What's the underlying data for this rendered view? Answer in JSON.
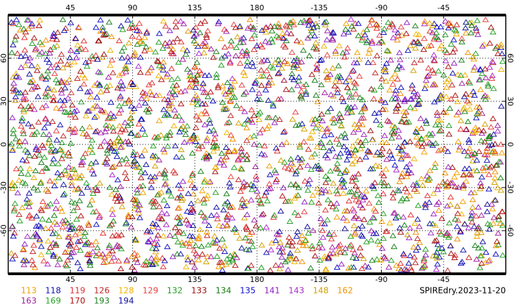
{
  "map": {
    "title": "SPIREdry.2023-11-20",
    "xlim": [
      0,
      360
    ],
    "ylim": [
      -90,
      90
    ],
    "xticks": [
      45,
      90,
      135,
      180,
      {
        "value": 225,
        "label": "-135"
      },
      {
        "value": 270,
        "label": "-90"
      },
      {
        "value": 315,
        "label": "-45"
      }
    ],
    "yticks": [
      -60,
      -30,
      0,
      30,
      60
    ],
    "grid": true,
    "legend": [
      {
        "name": "113",
        "color": "#f0a000"
      },
      {
        "name": "118",
        "color": "#1414b4"
      },
      {
        "name": "119",
        "color": "#e03030"
      },
      {
        "name": "126",
        "color": "#c02828"
      },
      {
        "name": "128",
        "color": "#f0b400"
      },
      {
        "name": "129",
        "color": "#e84040"
      },
      {
        "name": "132",
        "color": "#20a020"
      },
      {
        "name": "133",
        "color": "#a01010"
      },
      {
        "name": "134",
        "color": "#108010"
      },
      {
        "name": "135",
        "color": "#1010c8"
      },
      {
        "name": "141",
        "color": "#9020c0"
      },
      {
        "name": "143",
        "color": "#a828c8"
      },
      {
        "name": "148",
        "color": "#d0a000"
      },
      {
        "name": "162",
        "color": "#f09000"
      },
      {
        "name": "163",
        "color": "#a020a0"
      },
      {
        "name": "169",
        "color": "#28a028"
      },
      {
        "name": "170",
        "color": "#b01010"
      },
      {
        "name": "193",
        "color": "#208020"
      },
      {
        "name": "194",
        "color": "#1010a0"
      }
    ]
  }
}
